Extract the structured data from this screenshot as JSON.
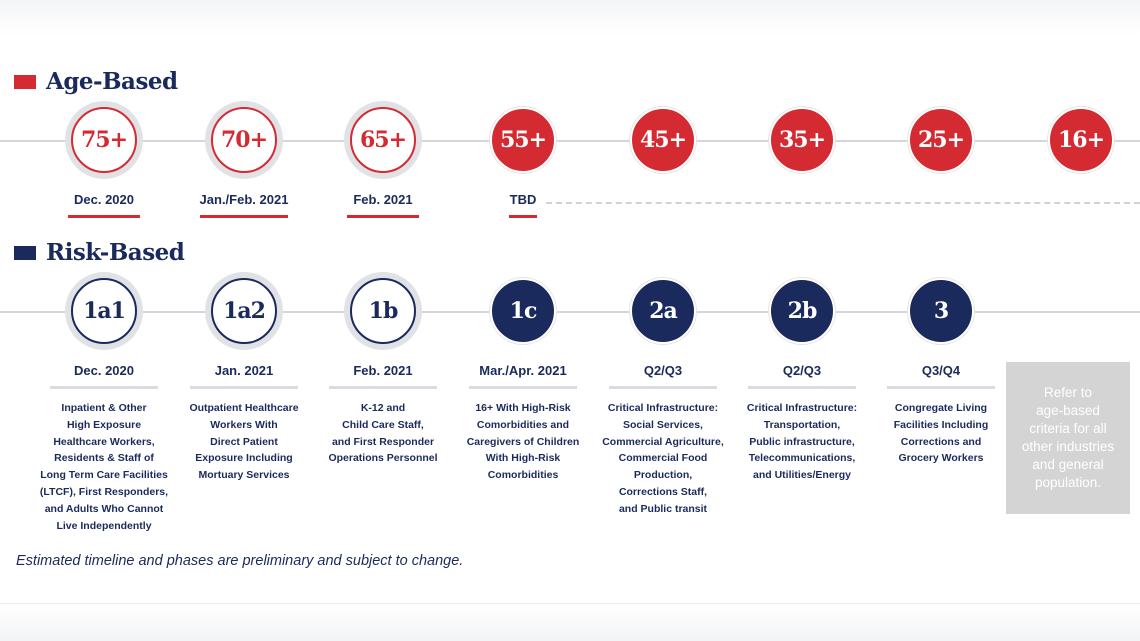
{
  "colors": {
    "red": "#d42a32",
    "navy": "#1b2a5c",
    "grey": "#d4d4d4"
  },
  "age_section": {
    "title": "Age-Based",
    "phases": [
      {
        "label": "75+",
        "date": "Dec. 2020",
        "style": "outline"
      },
      {
        "label": "70+",
        "date": "Jan./Feb. 2021",
        "style": "outline"
      },
      {
        "label": "65+",
        "date": "Feb. 2021",
        "style": "outline"
      },
      {
        "label": "55+",
        "date": "TBD",
        "style": "solid"
      },
      {
        "label": "45+",
        "date": "",
        "style": "solid"
      },
      {
        "label": "35+",
        "date": "",
        "style": "solid"
      },
      {
        "label": "25+",
        "date": "",
        "style": "solid"
      },
      {
        "label": "16+",
        "date": "",
        "style": "solid"
      }
    ]
  },
  "risk_section": {
    "title": "Risk-Based",
    "phases": [
      {
        "label": "1a1",
        "date": "Dec. 2020",
        "style": "outline",
        "description": "Inpatient & Other\nHigh Exposure\nHealthcare Workers,\nResidents & Staff of\nLong Term Care Facilities\n(LTCF), First Responders,\nand Adults Who Cannot\nLive Independently"
      },
      {
        "label": "1a2",
        "date": "Jan. 2021",
        "style": "outline",
        "description": "Outpatient Healthcare\nWorkers With\nDirect Patient\nExposure Including\nMortuary Services"
      },
      {
        "label": "1b",
        "date": "Feb. 2021",
        "style": "outline",
        "description": "K-12 and\nChild Care Staff,\nand First Responder\nOperations Personnel"
      },
      {
        "label": "1c",
        "date": "Mar./Apr. 2021",
        "style": "solid",
        "description": "16+ With High-Risk\nComorbidities and\nCaregivers of Children\nWith High-Risk\nComorbidities"
      },
      {
        "label": "2a",
        "date": "Q2/Q3",
        "style": "solid",
        "description": "Critical Infrastructure:\nSocial Services,\nCommercial Agriculture,\nCommercial Food\nProduction,\nCorrections Staff,\nand Public transit"
      },
      {
        "label": "2b",
        "date": "Q2/Q3",
        "style": "solid",
        "description": "Critical Infrastructure:\nTransportation,\nPublic infrastructure,\nTelecommunications,\nand Utilities/Energy"
      },
      {
        "label": "3",
        "date": "Q3/Q4",
        "style": "solid",
        "description": "Congregate Living\nFacilities Including\nCorrections and\nGrocery Workers"
      }
    ],
    "refer_box": "Refer to\nage-based\ncriteria for all\nother industries\nand general\npopulation."
  },
  "footnote": "Estimated timeline and phases are preliminary and subject to change."
}
